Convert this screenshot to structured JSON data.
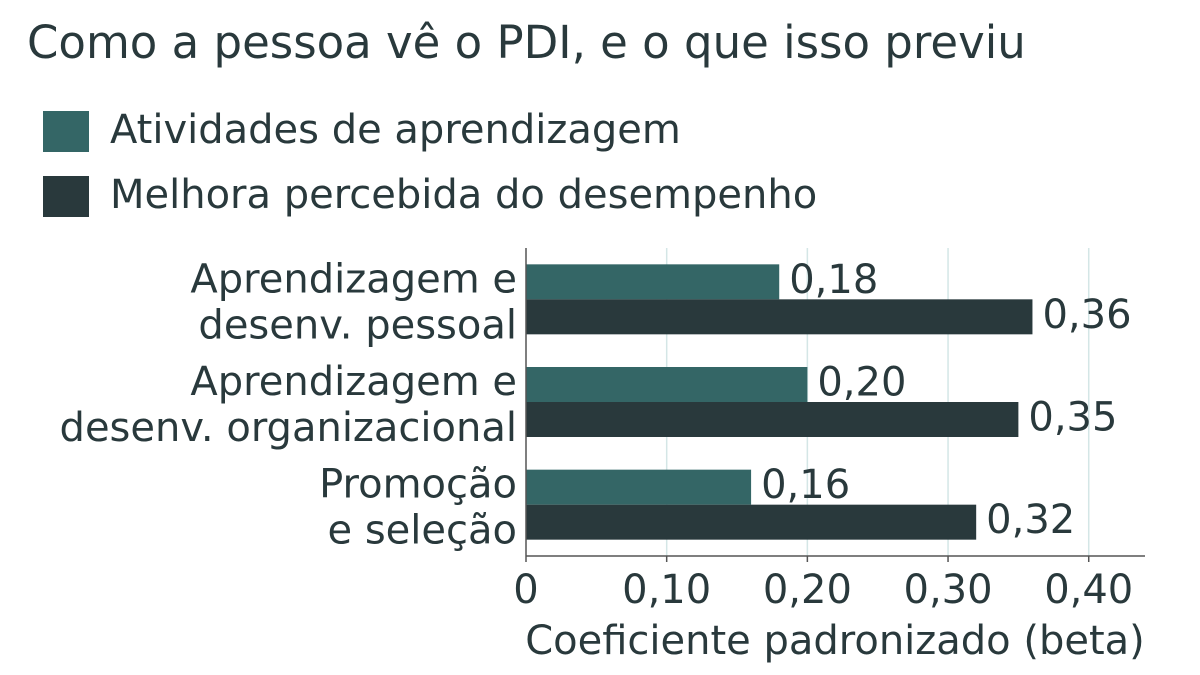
{
  "chart_data": {
    "type": "barh",
    "title": "Como a pessoa vê o PDI, e o que isso previu",
    "x_label": "Coeficiente padronizado (beta)",
    "categories": [
      [
        "Aprendizagem e",
        "desenv. pessoal"
      ],
      [
        "Aprendizagem e",
        "desenv. organizacional"
      ],
      [
        "Promoção",
        "e seleção"
      ]
    ],
    "series": [
      {
        "name": "Atividades de aprendizagem",
        "color": "#346666",
        "values": [
          0.18,
          0.2,
          0.16
        ],
        "value_labels": [
          "0,18",
          "0,20",
          "0,16"
        ]
      },
      {
        "name": "Melhora percebida do desempenho",
        "color": "#29393c",
        "values": [
          0.36,
          0.35,
          0.32
        ],
        "value_labels": [
          "0,36",
          "0,35",
          "0,32"
        ]
      }
    ],
    "xlim": [
      0,
      0.44
    ],
    "xticks": [
      0,
      {
        "value": 0.1,
        "label": "0,10"
      },
      {
        "value": 0.2,
        "label": "0,20"
      },
      {
        "value": 0.3,
        "label": "0,30"
      },
      {
        "value": 0.4,
        "label": "0,40"
      }
    ],
    "grid": true,
    "legend": "top-left"
  }
}
